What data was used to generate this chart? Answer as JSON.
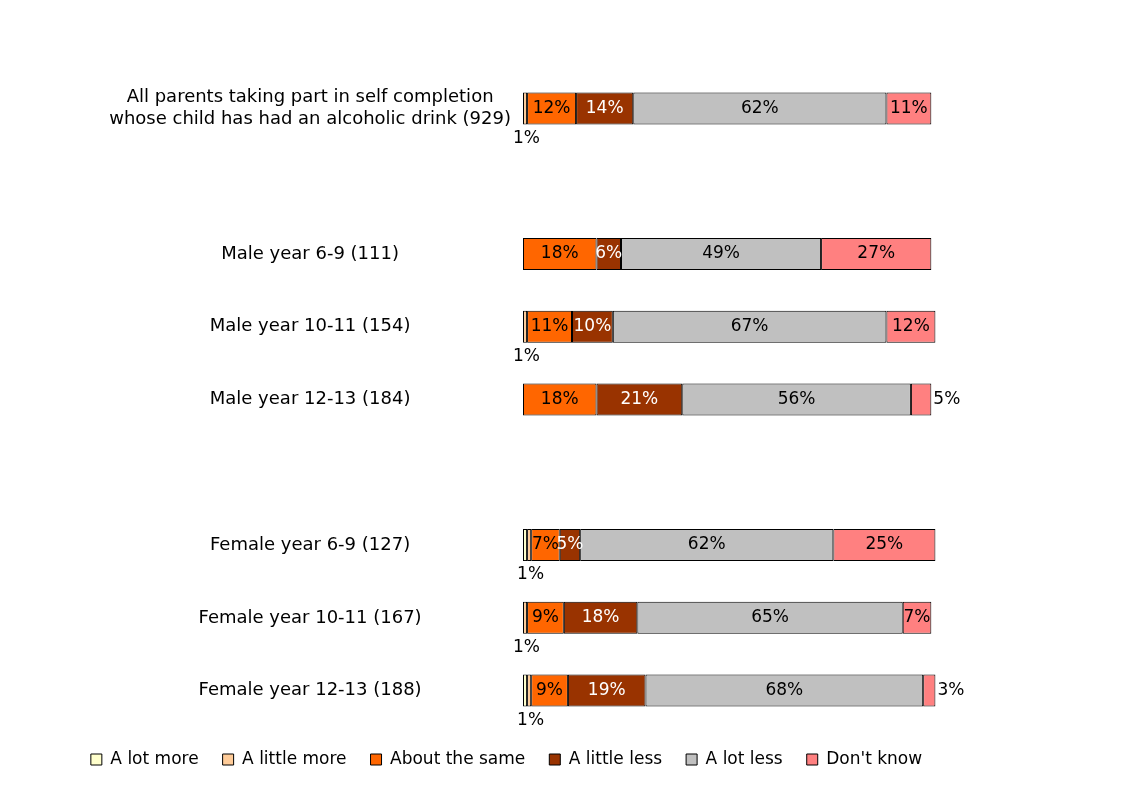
{
  "chart_data": {
    "type": "bar",
    "orientation": "horizontal",
    "stacked": true,
    "legend": "bottom",
    "grid": false,
    "tick_labels": "y",
    "categories": [
      "All parents taking part in self completion whose child has had an alcoholic drink (929)",
      null,
      "Male year 6-9 (111)",
      "Male year 10-11 (154)",
      "Male year 12-13 (184)",
      null,
      "Female year 6-9 (127)",
      "Female year 10-11 (167)",
      "Female year 12-13 (188)"
    ],
    "series": [
      {
        "name": "A lot more",
        "color": "#ffffcc",
        "values": [
          null,
          null,
          null,
          null,
          null,
          null,
          1,
          null,
          1
        ],
        "value_labels": [
          null,
          null,
          null,
          null,
          null,
          null,
          null,
          null,
          null
        ]
      },
      {
        "name": "A little more",
        "color": "#ffcc99",
        "values": [
          1,
          null,
          null,
          1,
          null,
          null,
          1,
          1,
          1
        ],
        "value_labels": [
          "1%",
          null,
          null,
          "1%",
          null,
          null,
          "1%",
          "1%",
          "1%"
        ]
      },
      {
        "name": "About the same",
        "color": "#ff6600",
        "values": [
          12,
          null,
          18,
          11,
          18,
          null,
          7,
          9,
          9
        ],
        "value_labels": [
          "12%",
          null,
          "18%",
          "11%",
          "18%",
          null,
          "7%",
          "9%",
          "9%"
        ]
      },
      {
        "name": "A little less",
        "color": "#993300",
        "values": [
          14,
          null,
          6,
          10,
          21,
          null,
          5,
          18,
          19
        ],
        "value_labels": [
          "14%",
          null,
          "6%",
          "10%",
          "21%",
          null,
          "5%",
          "18%",
          "19%"
        ]
      },
      {
        "name": "A lot less",
        "color": "#c0c0c0",
        "values": [
          62,
          null,
          49,
          67,
          56,
          null,
          62,
          65,
          68
        ],
        "value_labels": [
          "62%",
          null,
          "49%",
          "67%",
          "56%",
          null,
          "62%",
          "65%",
          "68%"
        ]
      },
      {
        "name": "Don't know",
        "color": "#ff8080",
        "values": [
          11,
          null,
          27,
          12,
          5,
          null,
          25,
          7,
          3
        ],
        "value_labels": [
          "11%",
          null,
          "27%",
          "12%",
          "5%",
          null,
          "25%",
          "7%",
          "3%"
        ]
      }
    ]
  }
}
